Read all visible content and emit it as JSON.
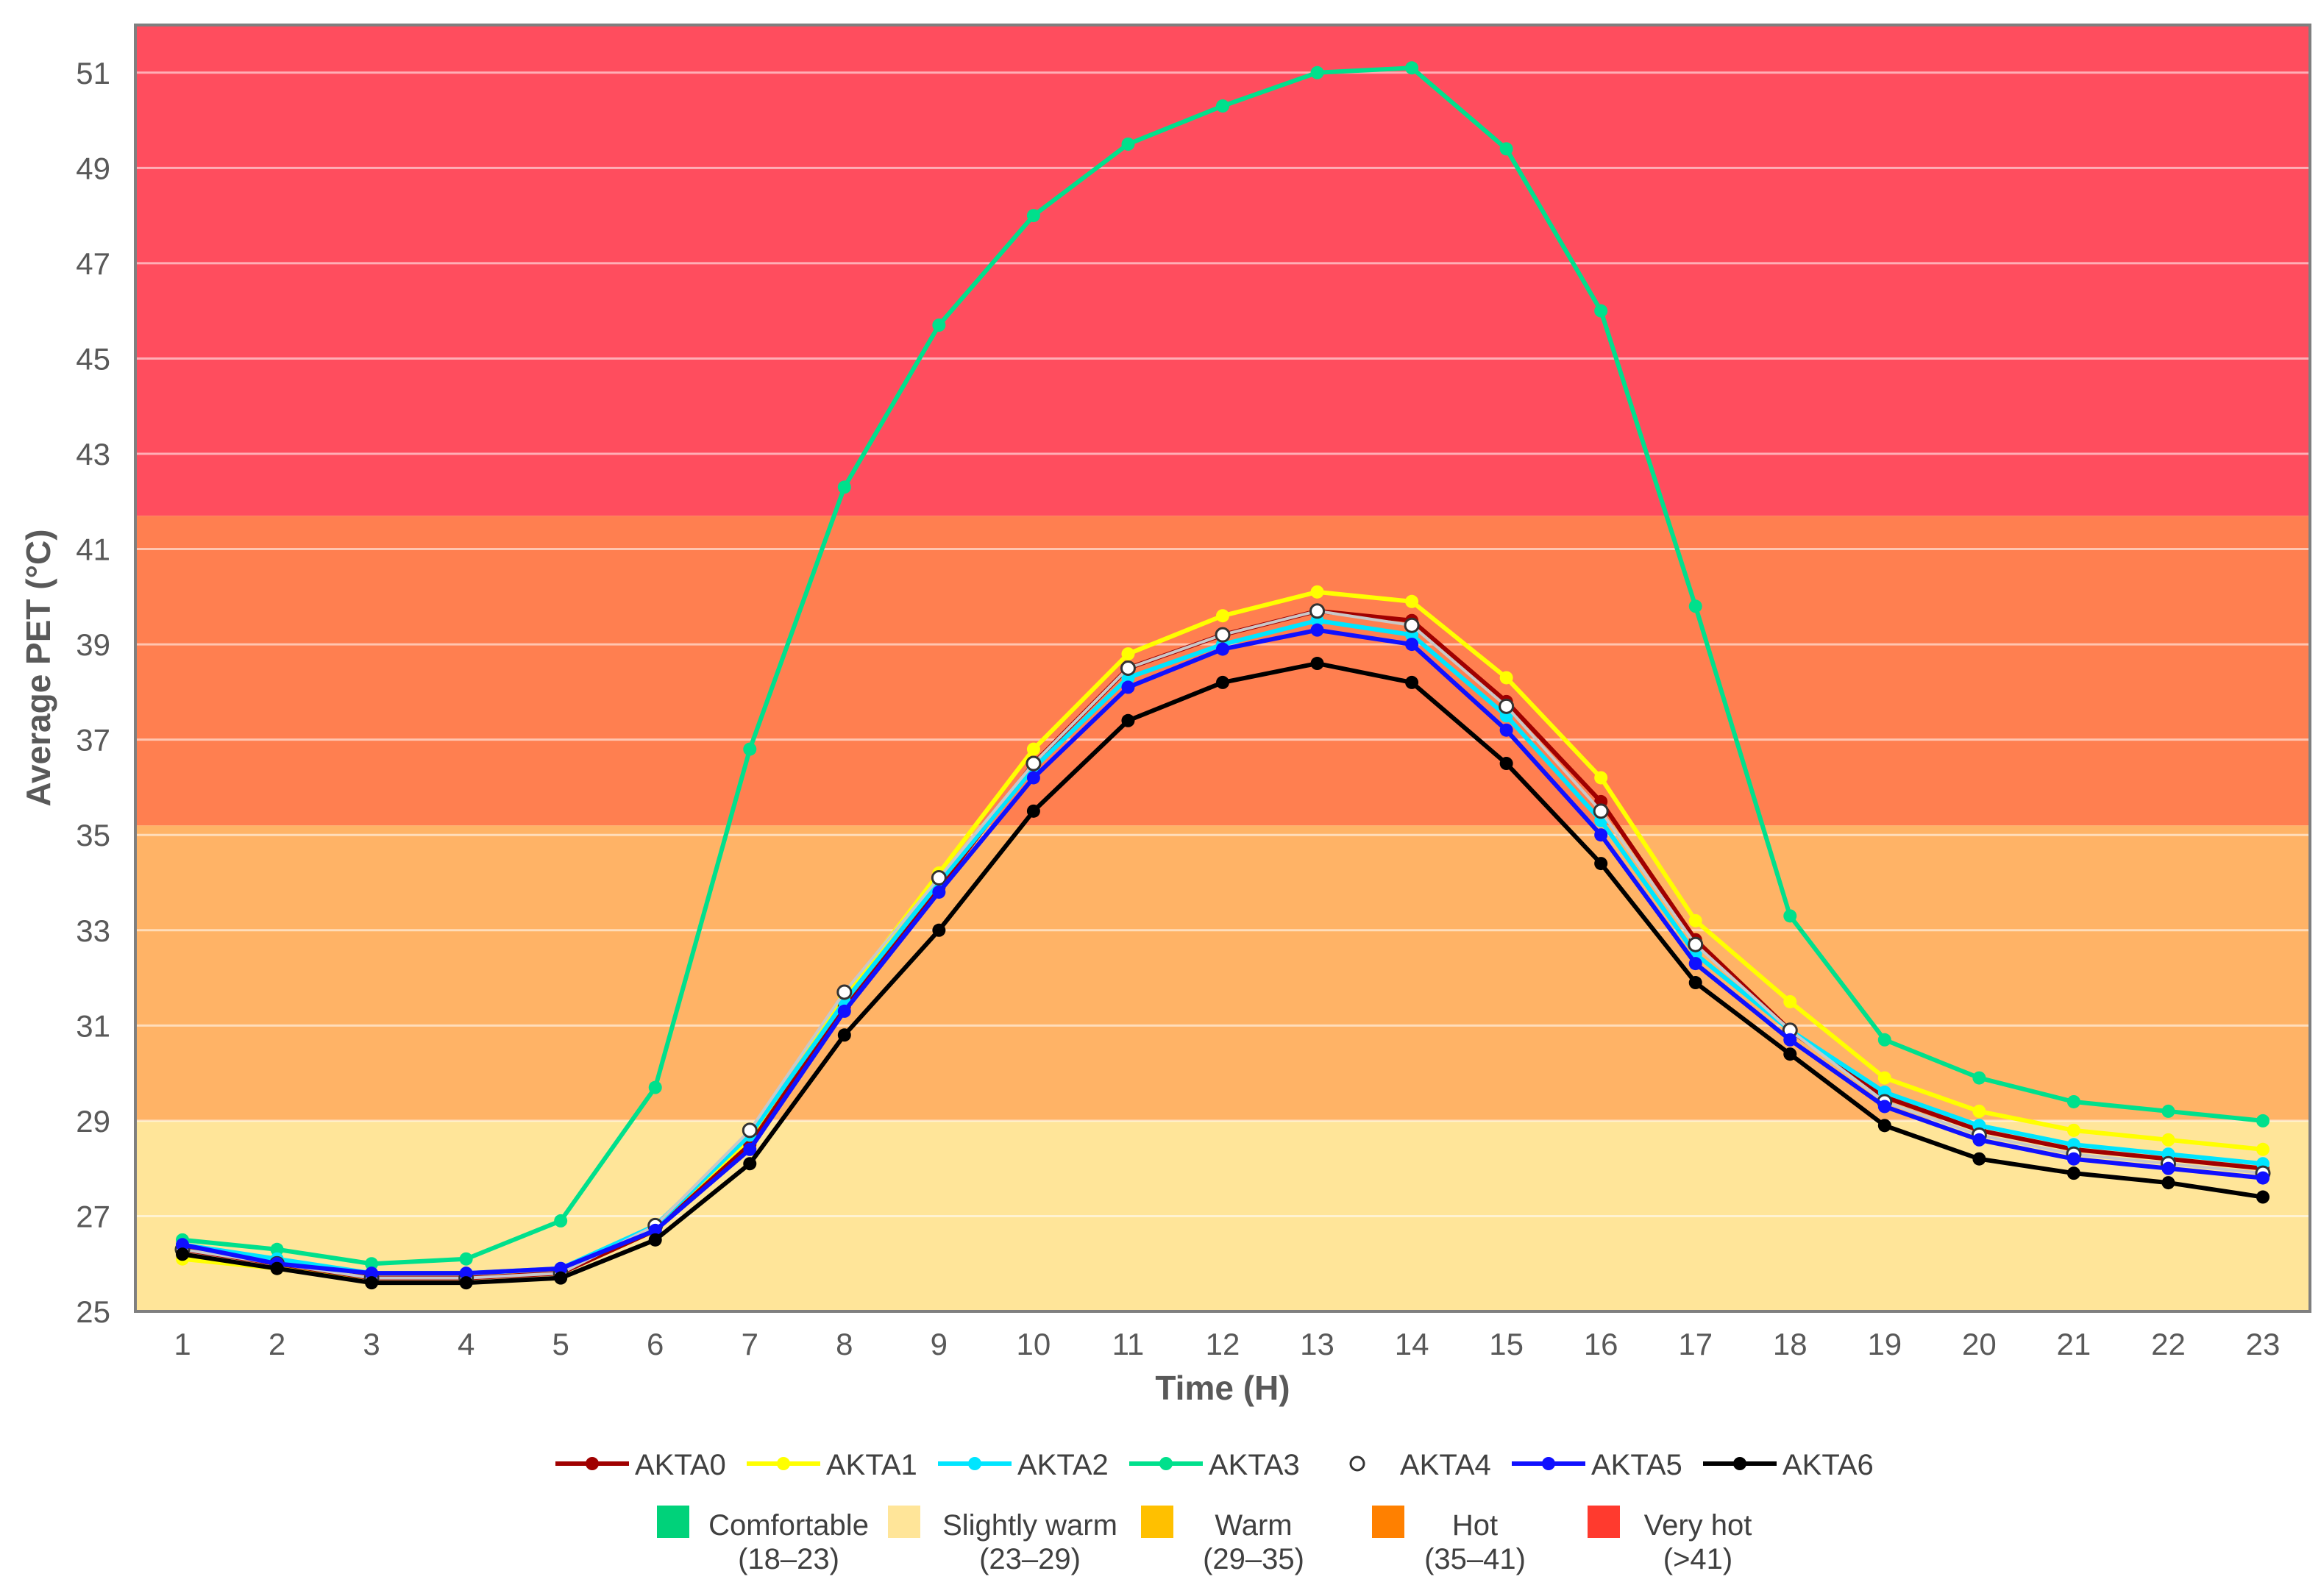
{
  "chart_data": {
    "type": "line",
    "xlabel": "Time (H)",
    "ylabel": "Average PET (°C)",
    "x": [
      1,
      2,
      3,
      4,
      5,
      6,
      7,
      8,
      9,
      10,
      11,
      12,
      13,
      14,
      15,
      16,
      17,
      18,
      19,
      20,
      21,
      22,
      23
    ],
    "ylim": [
      25,
      52
    ],
    "yticks": [
      25,
      27,
      29,
      31,
      33,
      35,
      37,
      39,
      41,
      43,
      45,
      47,
      49,
      51
    ],
    "grid": "horizontal",
    "legend_position": "bottom",
    "bands": [
      {
        "from": 25,
        "to": 29,
        "color": "#FFE599"
      },
      {
        "from": 29,
        "to": 35.2,
        "color": "#FFB366"
      },
      {
        "from": 35.2,
        "to": 41.7,
        "color": "#FF7F50"
      },
      {
        "from": 41.7,
        "to": 52,
        "color": "#FF4D5E"
      }
    ],
    "series": [
      {
        "name": "AKTA0",
        "color": "#A00000",
        "marker": "filled",
        "values": [
          26.3,
          26.0,
          25.7,
          25.7,
          25.8,
          26.7,
          28.5,
          31.4,
          33.9,
          36.5,
          38.5,
          39.2,
          39.7,
          39.5,
          37.8,
          35.7,
          32.8,
          30.9,
          29.5,
          28.8,
          28.4,
          28.2,
          28.0
        ]
      },
      {
        "name": "AKTA1",
        "color": "#FFFF00",
        "marker": "filled",
        "values": [
          26.1,
          25.9,
          25.7,
          25.7,
          25.8,
          26.7,
          28.6,
          31.6,
          34.2,
          36.8,
          38.8,
          39.6,
          40.1,
          39.9,
          38.3,
          36.2,
          33.2,
          31.5,
          29.9,
          29.2,
          28.8,
          28.6,
          28.4
        ]
      },
      {
        "name": "AKTA2",
        "color": "#00E5FF",
        "marker": "filled",
        "values": [
          26.4,
          26.1,
          25.8,
          25.8,
          25.9,
          26.8,
          28.7,
          31.5,
          34.0,
          36.4,
          38.3,
          39.0,
          39.5,
          39.2,
          37.5,
          35.3,
          32.5,
          30.9,
          29.6,
          28.9,
          28.5,
          28.3,
          28.1
        ]
      },
      {
        "name": "AKTA3",
        "color": "#00E08C",
        "marker": "filled",
        "values": [
          26.5,
          26.3,
          26.0,
          26.1,
          26.9,
          29.7,
          36.8,
          42.3,
          45.7,
          48.0,
          49.5,
          50.3,
          51.0,
          51.1,
          49.4,
          46.0,
          39.8,
          33.3,
          30.7,
          29.9,
          29.4,
          29.2,
          29.0
        ]
      },
      {
        "name": "AKTA4",
        "color": "#555555",
        "marker": "open",
        "values": [
          26.3,
          26.0,
          25.7,
          25.7,
          25.8,
          26.8,
          28.8,
          31.7,
          34.1,
          36.5,
          38.5,
          39.2,
          39.7,
          39.4,
          37.7,
          35.5,
          32.7,
          30.9,
          29.4,
          28.7,
          28.3,
          28.1,
          27.9
        ]
      },
      {
        "name": "AKTA5",
        "color": "#1010FF",
        "marker": "filled",
        "values": [
          26.4,
          26.0,
          25.8,
          25.8,
          25.9,
          26.7,
          28.4,
          31.3,
          33.8,
          36.2,
          38.1,
          38.9,
          39.3,
          39.0,
          37.2,
          35.0,
          32.3,
          30.7,
          29.3,
          28.6,
          28.2,
          28.0,
          27.8
        ]
      },
      {
        "name": "AKTA6",
        "color": "#000000",
        "marker": "filled",
        "values": [
          26.2,
          25.9,
          25.6,
          25.6,
          25.7,
          26.5,
          28.1,
          30.8,
          33.0,
          35.5,
          37.4,
          38.2,
          38.6,
          38.2,
          36.5,
          34.4,
          31.9,
          30.4,
          28.9,
          28.2,
          27.9,
          27.7,
          27.4
        ]
      }
    ],
    "category_legend": [
      {
        "name": "Comfortable",
        "range": "(18–23)",
        "color": "#00D27A"
      },
      {
        "name": "Slightly warm",
        "range": "(23–29)",
        "color": "#FFE599"
      },
      {
        "name": "Warm",
        "range": "(29–35)",
        "color": "#FFC000"
      },
      {
        "name": "Hot",
        "range": "(35–41)",
        "color": "#FF8000"
      },
      {
        "name": "Very hot",
        "range": "(>41)",
        "color": "#FF3A2E"
      }
    ]
  }
}
